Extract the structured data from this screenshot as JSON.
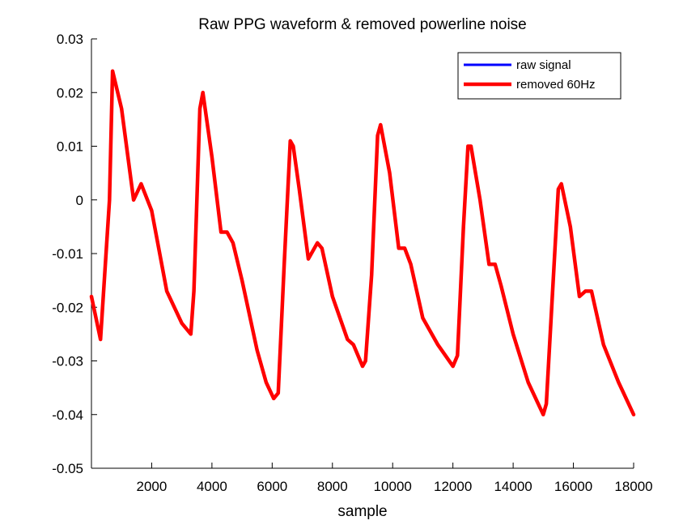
{
  "chart_data": {
    "type": "line",
    "title": "Raw PPG waveform & removed powerline noise",
    "xlabel": "sample",
    "ylabel": "",
    "xlim": [
      0,
      18000
    ],
    "ylim": [
      -0.05,
      0.03
    ],
    "xticks": [
      2000,
      4000,
      6000,
      8000,
      10000,
      12000,
      14000,
      16000,
      18000
    ],
    "xtick_labels": [
      "2000",
      "4000",
      "6000",
      "8000",
      "10000",
      "12000",
      "14000",
      "16000",
      "18000"
    ],
    "yticks": [
      -0.05,
      -0.04,
      -0.03,
      -0.02,
      -0.01,
      0,
      0.01,
      0.02,
      0.03
    ],
    "ytick_labels": [
      "-0.05",
      "-0.04",
      "-0.03",
      "-0.02",
      "-0.01",
      "0",
      "0.01",
      "0.02",
      "0.03"
    ],
    "grid": false,
    "legend_position": "top-right",
    "series": [
      {
        "name": "raw signal",
        "color": "#0000ff",
        "x": [
          0,
          300,
          600,
          700,
          1000,
          1400,
          1650,
          2000,
          2500,
          3000,
          3300,
          3400,
          3600,
          3700,
          4000,
          4300,
          4500,
          4700,
          5000,
          5500,
          5800,
          6050,
          6200,
          6400,
          6600,
          6700,
          6900,
          7200,
          7500,
          7650,
          8000,
          8500,
          8700,
          9000,
          9100,
          9300,
          9500,
          9600,
          9900,
          10200,
          10400,
          10600,
          11000,
          11500,
          12000,
          12150,
          12350,
          12500,
          12600,
          12900,
          13200,
          13400,
          13600,
          14000,
          14500,
          15000,
          15100,
          15300,
          15500,
          15600,
          15900,
          16200,
          16400,
          16600,
          17000,
          17500,
          18000
        ],
        "y": [
          -0.018,
          -0.026,
          0.0,
          0.024,
          0.017,
          0.0,
          0.003,
          -0.002,
          -0.017,
          -0.023,
          -0.025,
          -0.017,
          0.017,
          0.02,
          0.008,
          -0.006,
          -0.006,
          -0.008,
          -0.015,
          -0.028,
          -0.034,
          -0.037,
          -0.036,
          -0.012,
          0.011,
          0.01,
          0.002,
          -0.011,
          -0.008,
          -0.009,
          -0.018,
          -0.026,
          -0.027,
          -0.031,
          -0.03,
          -0.014,
          0.012,
          0.014,
          0.005,
          -0.009,
          -0.009,
          -0.012,
          -0.022,
          -0.027,
          -0.031,
          -0.029,
          -0.005,
          0.01,
          0.01,
          0.0,
          -0.012,
          -0.012,
          -0.016,
          -0.025,
          -0.034,
          -0.04,
          -0.038,
          -0.018,
          0.002,
          0.003,
          -0.005,
          -0.018,
          -0.017,
          -0.017,
          -0.027,
          -0.034,
          -0.04
        ]
      },
      {
        "name": "removed 60Hz",
        "color": "#ff0000",
        "x": [
          0,
          300,
          600,
          700,
          1000,
          1400,
          1650,
          2000,
          2500,
          3000,
          3300,
          3400,
          3600,
          3700,
          4000,
          4300,
          4500,
          4700,
          5000,
          5500,
          5800,
          6050,
          6200,
          6400,
          6600,
          6700,
          6900,
          7200,
          7500,
          7650,
          8000,
          8500,
          8700,
          9000,
          9100,
          9300,
          9500,
          9600,
          9900,
          10200,
          10400,
          10600,
          11000,
          11500,
          12000,
          12150,
          12350,
          12500,
          12600,
          12900,
          13200,
          13400,
          13600,
          14000,
          14500,
          15000,
          15100,
          15300,
          15500,
          15600,
          15900,
          16200,
          16400,
          16600,
          17000,
          17500,
          18000
        ],
        "y": [
          -0.018,
          -0.026,
          0.0,
          0.024,
          0.017,
          0.0,
          0.003,
          -0.002,
          -0.017,
          -0.023,
          -0.025,
          -0.017,
          0.017,
          0.02,
          0.008,
          -0.006,
          -0.006,
          -0.008,
          -0.015,
          -0.028,
          -0.034,
          -0.037,
          -0.036,
          -0.012,
          0.011,
          0.01,
          0.002,
          -0.011,
          -0.008,
          -0.009,
          -0.018,
          -0.026,
          -0.027,
          -0.031,
          -0.03,
          -0.014,
          0.012,
          0.014,
          0.005,
          -0.009,
          -0.009,
          -0.012,
          -0.022,
          -0.027,
          -0.031,
          -0.029,
          -0.005,
          0.01,
          0.01,
          0.0,
          -0.012,
          -0.012,
          -0.016,
          -0.025,
          -0.034,
          -0.04,
          -0.038,
          -0.018,
          0.002,
          0.003,
          -0.005,
          -0.018,
          -0.017,
          -0.017,
          -0.027,
          -0.034,
          -0.04
        ]
      }
    ]
  }
}
